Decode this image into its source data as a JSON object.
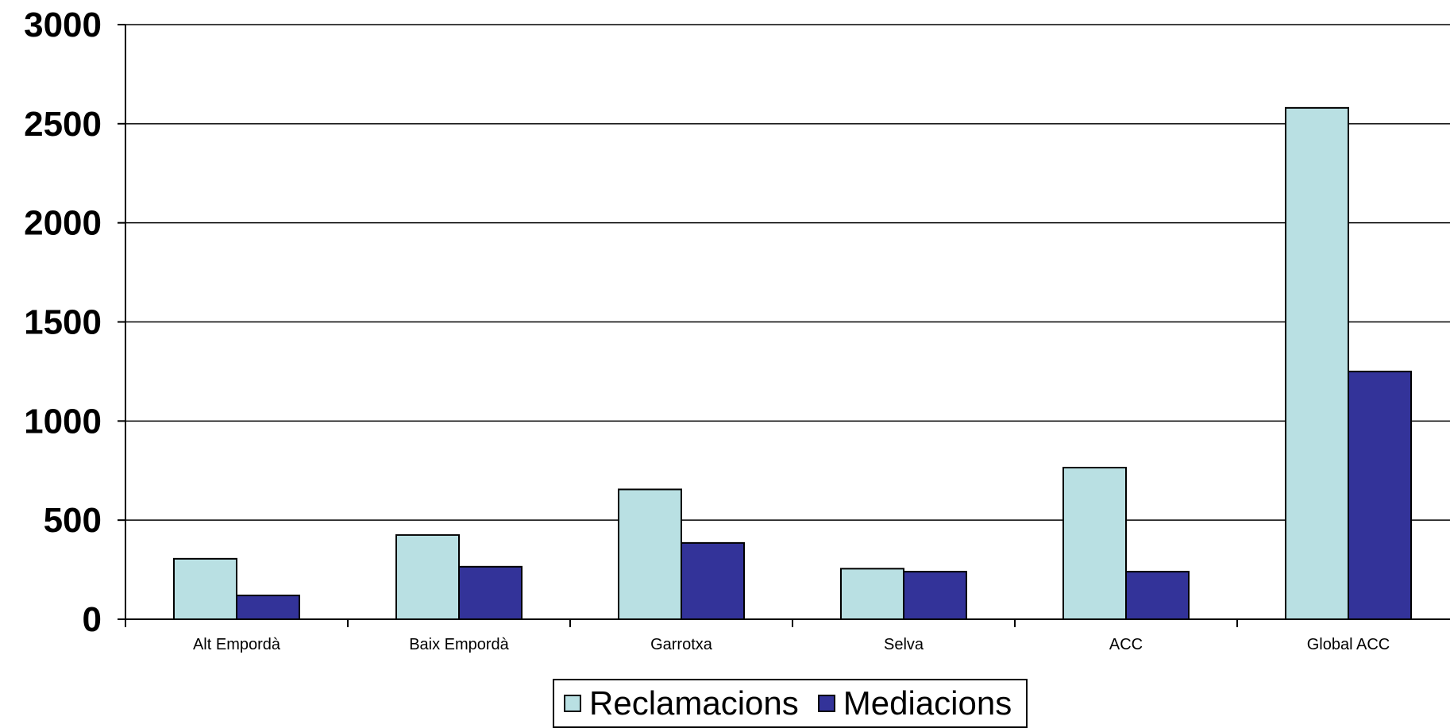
{
  "chart_data": {
    "type": "bar",
    "categories": [
      "Alt Empordà",
      "Baix Empordà",
      "Garrotxa",
      "Selva",
      "ACC",
      "Global ACC"
    ],
    "series": [
      {
        "name": "Reclamacions",
        "color": "#b9e0e3",
        "values": [
          305,
          425,
          655,
          255,
          765,
          2580
        ]
      },
      {
        "name": "Mediacions",
        "color": "#333399",
        "values": [
          120,
          265,
          385,
          240,
          240,
          1250
        ]
      }
    ],
    "ylim": [
      0,
      3000
    ],
    "yticks": [
      0,
      500,
      1000,
      1500,
      2000,
      2500,
      3000
    ],
    "grid": true,
    "legend_position": "bottom"
  }
}
